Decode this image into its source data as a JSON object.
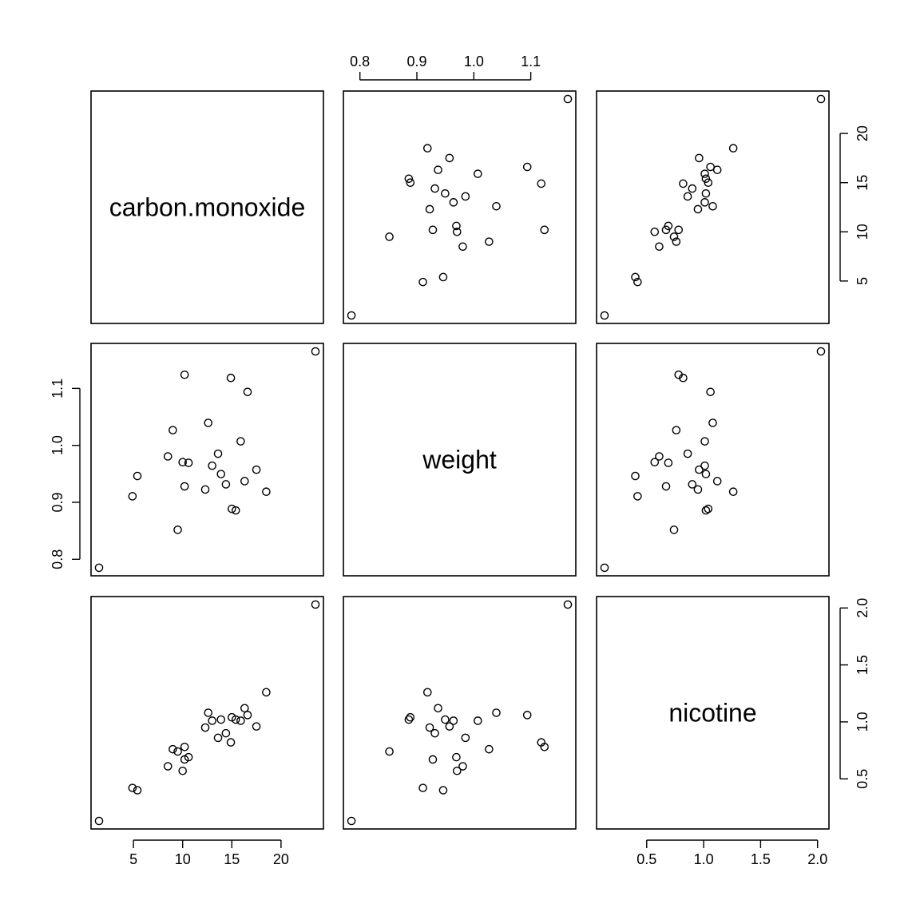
{
  "chart_data": {
    "type": "scatter",
    "kind": "pairs",
    "variables": [
      "carbon.monoxide",
      "weight",
      "nicotine"
    ],
    "ranges": {
      "carbon.monoxide": [
        1.5,
        23.5
      ],
      "weight": [
        0.785,
        1.165
      ],
      "nicotine": [
        0.13,
        2.03
      ]
    },
    "ticks": {
      "carbon.monoxide": [
        5,
        10,
        15,
        20
      ],
      "weight": [
        0.8,
        0.9,
        1.0,
        1.1
      ],
      "nicotine": [
        0.5,
        1.0,
        1.5,
        2.0
      ]
    },
    "tick_labels": {
      "carbon.monoxide": [
        "5",
        "10",
        "15",
        "20"
      ],
      "weight": [
        "0.8",
        "0.9",
        "1.0",
        "1.1"
      ],
      "nicotine": [
        "0.5",
        "1.0",
        "1.5",
        "2.0"
      ]
    },
    "observations": [
      {
        "carbon.monoxide": 13.6,
        "weight": 0.9853,
        "nicotine": 0.86
      },
      {
        "carbon.monoxide": 16.6,
        "weight": 1.0938,
        "nicotine": 1.06
      },
      {
        "carbon.monoxide": 23.5,
        "weight": 1.165,
        "nicotine": 2.03
      },
      {
        "carbon.monoxide": 10.2,
        "weight": 0.928,
        "nicotine": 0.67
      },
      {
        "carbon.monoxide": 5.4,
        "weight": 0.9462,
        "nicotine": 0.4
      },
      {
        "carbon.monoxide": 15.0,
        "weight": 0.8885,
        "nicotine": 1.04
      },
      {
        "carbon.monoxide": 9.0,
        "weight": 1.0267,
        "nicotine": 0.76
      },
      {
        "carbon.monoxide": 12.3,
        "weight": 0.9225,
        "nicotine": 0.95
      },
      {
        "carbon.monoxide": 16.3,
        "weight": 0.9372,
        "nicotine": 1.12
      },
      {
        "carbon.monoxide": 15.4,
        "weight": 0.8858,
        "nicotine": 1.02
      },
      {
        "carbon.monoxide": 13.0,
        "weight": 0.9643,
        "nicotine": 1.01
      },
      {
        "carbon.monoxide": 14.4,
        "weight": 0.9316,
        "nicotine": 0.9
      },
      {
        "carbon.monoxide": 10.0,
        "weight": 0.9705,
        "nicotine": 0.57
      },
      {
        "carbon.monoxide": 10.2,
        "weight": 1.124,
        "nicotine": 0.78
      },
      {
        "carbon.monoxide": 9.5,
        "weight": 0.8517,
        "nicotine": 0.74
      },
      {
        "carbon.monoxide": 1.5,
        "weight": 0.7851,
        "nicotine": 0.13
      },
      {
        "carbon.monoxide": 18.5,
        "weight": 0.9186,
        "nicotine": 1.26
      },
      {
        "carbon.monoxide": 12.6,
        "weight": 1.0395,
        "nicotine": 1.08
      },
      {
        "carbon.monoxide": 17.5,
        "weight": 0.9573,
        "nicotine": 0.96
      },
      {
        "carbon.monoxide": 4.9,
        "weight": 0.9106,
        "nicotine": 0.42
      },
      {
        "carbon.monoxide": 15.9,
        "weight": 1.007,
        "nicotine": 1.01
      },
      {
        "carbon.monoxide": 8.5,
        "weight": 0.9806,
        "nicotine": 0.61
      },
      {
        "carbon.monoxide": 10.6,
        "weight": 0.9693,
        "nicotine": 0.69
      },
      {
        "carbon.monoxide": 13.9,
        "weight": 0.9496,
        "nicotine": 1.02
      },
      {
        "carbon.monoxide": 14.9,
        "weight": 1.1184,
        "nicotine": 0.82
      }
    ],
    "tick_sides": {
      "top": "weight",
      "right_row0": "carbon.monoxide",
      "left_row1": "weight",
      "right_row2": "nicotine",
      "bottom_col0": "carbon.monoxide",
      "bottom_col2": "nicotine"
    }
  }
}
